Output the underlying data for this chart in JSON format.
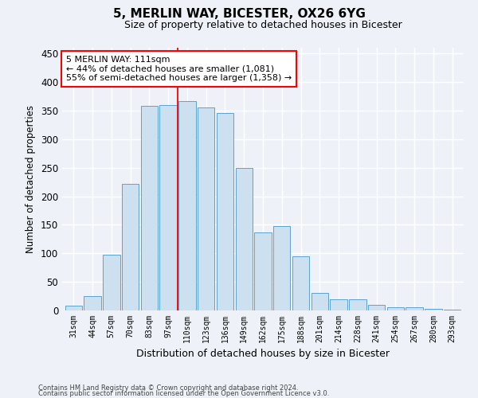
{
  "title1": "5, MERLIN WAY, BICESTER, OX26 6YG",
  "title2": "Size of property relative to detached houses in Bicester",
  "xlabel": "Distribution of detached houses by size in Bicester",
  "ylabel": "Number of detached properties",
  "categories": [
    "31sqm",
    "44sqm",
    "57sqm",
    "70sqm",
    "83sqm",
    "97sqm",
    "110sqm",
    "123sqm",
    "136sqm",
    "149sqm",
    "162sqm",
    "175sqm",
    "188sqm",
    "201sqm",
    "214sqm",
    "228sqm",
    "241sqm",
    "254sqm",
    "267sqm",
    "280sqm",
    "293sqm"
  ],
  "values": [
    8,
    25,
    98,
    222,
    358,
    360,
    367,
    355,
    346,
    250,
    137,
    148,
    95,
    30,
    20,
    20,
    10,
    5,
    5,
    3,
    2
  ],
  "bar_color": "#cce0f0",
  "bar_edge_color": "#5ba3d0",
  "annotation_box_text": "5 MERLIN WAY: 111sqm\n← 44% of detached houses are smaller (1,081)\n55% of semi-detached houses are larger (1,358) →",
  "annotation_box_color": "white",
  "annotation_box_edge_color": "red",
  "vline_color": "red",
  "vline_x_index": 6,
  "ylim": [
    0,
    460
  ],
  "yticks": [
    0,
    50,
    100,
    150,
    200,
    250,
    300,
    350,
    400,
    450
  ],
  "footer1": "Contains HM Land Registry data © Crown copyright and database right 2024.",
  "footer2": "Contains public sector information licensed under the Open Government Licence v3.0.",
  "background_color": "#eef2f8",
  "grid_color": "white",
  "bar_width": 0.9
}
